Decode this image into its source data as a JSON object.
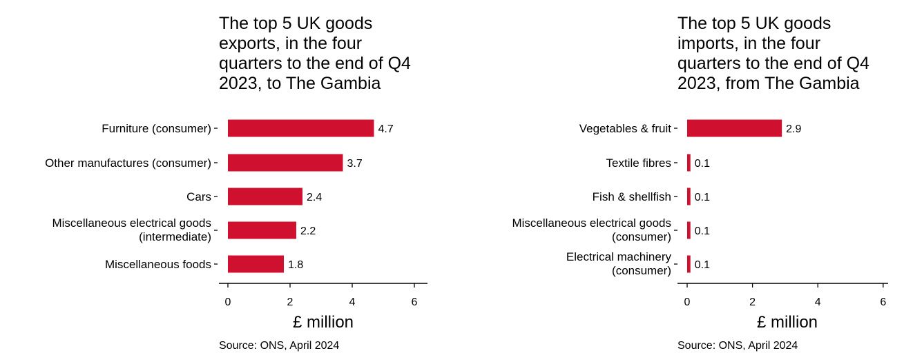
{
  "chart_data": [
    {
      "type": "bar",
      "orientation": "horizontal",
      "title_lines": [
        "The top 5 UK goods",
        "exports, in the four",
        "quarters to the end of Q4",
        "2023, to The Gambia"
      ],
      "categories": [
        [
          "Furniture (consumer)"
        ],
        [
          "Other manufactures (consumer)"
        ],
        [
          "Cars"
        ],
        [
          "Miscellaneous electrical goods",
          "(intermediate)"
        ],
        [
          "Miscellaneous foods"
        ]
      ],
      "values": [
        4.7,
        3.7,
        2.4,
        2.2,
        1.8
      ],
      "value_labels": [
        "4.7",
        "3.7",
        "2.4",
        "2.2",
        "1.8"
      ],
      "xlabel": "£ million",
      "xticks": [
        0,
        2,
        4,
        6
      ],
      "xlim": [
        0,
        6
      ],
      "source": "Source: ONS, April 2024",
      "bar_color": "#d0102f",
      "grid": false
    },
    {
      "type": "bar",
      "orientation": "horizontal",
      "title_lines": [
        "The top 5 UK goods",
        "imports, in the four",
        "quarters to the end of Q4",
        "2023, from The Gambia"
      ],
      "categories": [
        [
          "Vegetables & fruit"
        ],
        [
          "Textile fibres"
        ],
        [
          "Fish & shellfish"
        ],
        [
          "Miscellaneous electrical goods",
          "(consumer)"
        ],
        [
          "Electrical machinery",
          "(consumer)"
        ]
      ],
      "values": [
        2.9,
        0.1,
        0.1,
        0.1,
        0.1
      ],
      "value_labels": [
        "2.9",
        "0.1",
        "0.1",
        "0.1",
        "0.1"
      ],
      "xlabel": "£ million",
      "xticks": [
        0,
        2,
        4,
        6
      ],
      "xlim": [
        0,
        6
      ],
      "source": "Source: ONS, April 2024",
      "bar_color": "#d0102f",
      "grid": false
    }
  ]
}
